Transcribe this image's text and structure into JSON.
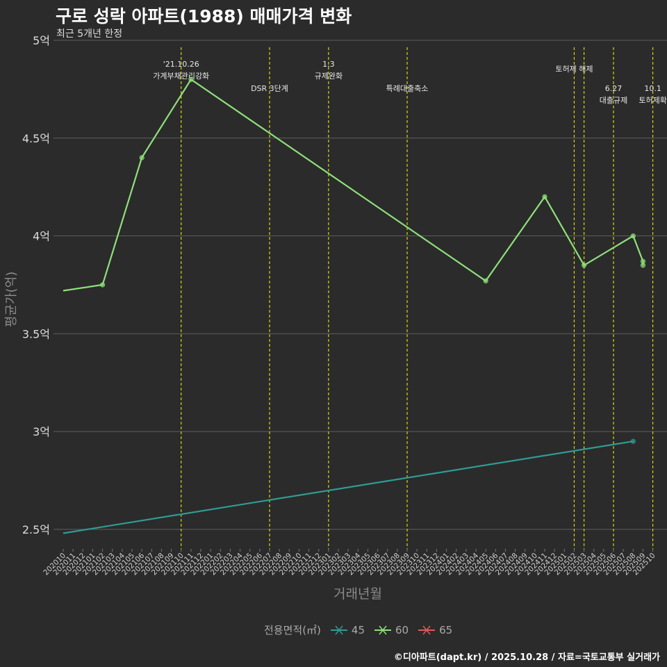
{
  "chart_data": {
    "type": "line",
    "title": "구로 성락 아파트(1988) 매매가격 변화",
    "subtitle": "최근 5개년 한정",
    "xlabel": "거래년월",
    "ylabel": "평균가(억)",
    "caption": "©디아파트(dapt.kr) / 2025.10.28 / 자료=국토교통부 실거래가",
    "ylim": [
      2.4,
      5.0
    ],
    "yticks": [
      {
        "value": 2.5,
        "label": "2.5억"
      },
      {
        "value": 3.0,
        "label": "3억"
      },
      {
        "value": 3.5,
        "label": "3.5억"
      },
      {
        "value": 4.0,
        "label": "4억"
      },
      {
        "value": 4.5,
        "label": "4.5억"
      },
      {
        "value": 5.0,
        "label": "5억"
      }
    ],
    "categories": [
      "202010",
      "202011",
      "202012",
      "202101",
      "202102",
      "202103",
      "202104",
      "202105",
      "202106",
      "202107",
      "202108",
      "202109",
      "202110",
      "202111",
      "202112",
      "202201",
      "202202",
      "202203",
      "202204",
      "202205",
      "202206",
      "202207",
      "202208",
      "202209",
      "202210",
      "202211",
      "202212",
      "202301",
      "202302",
      "202303",
      "202304",
      "202305",
      "202306",
      "202307",
      "202308",
      "202309",
      "202310",
      "202311",
      "202312",
      "202401",
      "202402",
      "202403",
      "202404",
      "202405",
      "202406",
      "202407",
      "202408",
      "202409",
      "202410",
      "202411",
      "202412",
      "202501",
      "202502",
      "202503",
      "202504",
      "202505",
      "202506",
      "202507",
      "202508",
      "202509",
      "202510"
    ],
    "legend_title": "전용면적(㎡)",
    "series": [
      {
        "name": "45",
        "color": "#2e9c94",
        "points": [
          {
            "x": "202010",
            "y": 2.48
          },
          {
            "x": "202508",
            "y": 2.95
          }
        ]
      },
      {
        "name": "60",
        "color": "#8ee07a",
        "points": [
          {
            "x": "202010",
            "y": 3.72
          },
          {
            "x": "202102",
            "y": 3.75
          },
          {
            "x": "202106",
            "y": 4.4
          },
          {
            "x": "202111",
            "y": 4.8
          },
          {
            "x": "202405",
            "y": 3.77
          },
          {
            "x": "202411",
            "y": 4.2
          },
          {
            "x": "202503",
            "y": 3.85
          },
          {
            "x": "202508",
            "y": 4.0
          },
          {
            "x": "202509",
            "y": 3.87
          },
          {
            "x": "202509",
            "y": 3.85
          }
        ]
      },
      {
        "name": "65",
        "color": "#e05a5a",
        "points": []
      }
    ],
    "events": [
      {
        "x": "202110",
        "lines": [
          "'21.10.26",
          "가계부채관리강화"
        ],
        "row": 0
      },
      {
        "x": "202207",
        "lines": [
          "DSR 3단계"
        ],
        "row": 2
      },
      {
        "x": "202301",
        "lines": [
          "1.3",
          "규제완화"
        ],
        "row": 0
      },
      {
        "x": "202309",
        "lines": [
          "특례대출축소"
        ],
        "row": 2
      },
      {
        "x": "202502",
        "lines": [
          "토허제 해제"
        ],
        "row": 1
      },
      {
        "x": "202503",
        "lines": [],
        "row": 1
      },
      {
        "x": "202506",
        "lines": [
          "6.27",
          "대출규제"
        ],
        "row": 2
      },
      {
        "x": "202510",
        "lines": [
          "10.1",
          "토허제확"
        ],
        "row": 2
      }
    ]
  }
}
